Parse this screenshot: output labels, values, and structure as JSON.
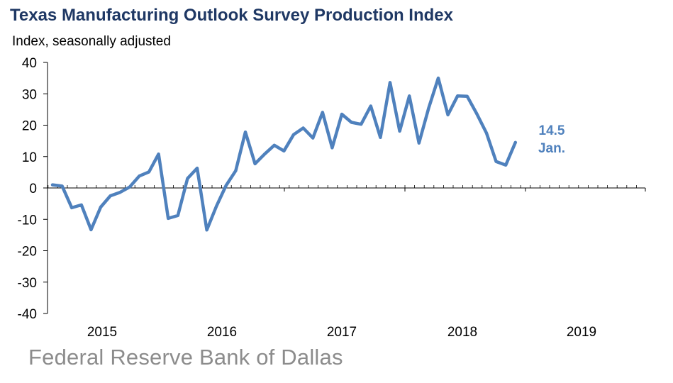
{
  "title": "Texas Manufacturing Outlook Survey Production Index",
  "subtitle": "Index, seasonally adjusted",
  "footer": "Federal Reserve Bank of Dallas",
  "colors": {
    "title": "#1f3864",
    "series": "#4f81bd",
    "axis": "#000000",
    "footer": "#8c8c8c"
  },
  "chart_data": {
    "type": "line",
    "title": "Texas Manufacturing Outlook Survey Production Index",
    "ylabel": "Index, seasonally adjusted",
    "xlabel": "",
    "ylim": [
      -40,
      40
    ],
    "y_ticks": [
      "40",
      "30",
      "20",
      "10",
      "0",
      "-10",
      "-20",
      "-30",
      "-40"
    ],
    "y_tick_values": [
      40,
      30,
      20,
      10,
      0,
      -10,
      -20,
      -30,
      -40
    ],
    "x_tick_labels": [
      "2015",
      "2016",
      "2017",
      "2018",
      "2019"
    ],
    "grid": false,
    "series": [
      {
        "values": [
          1.0,
          0.6,
          -6.3,
          -5.4,
          -13.3,
          -6.1,
          -2.5,
          -1.4,
          0.3,
          3.8,
          5.1,
          10.8,
          -9.7,
          -8.8,
          3.0,
          6.3,
          -13.4,
          -5.8,
          0.8,
          5.5,
          17.8,
          7.7,
          10.8,
          13.6,
          11.8,
          17.0,
          19.1,
          15.9,
          24.1,
          12.8,
          23.5,
          20.9,
          20.3,
          26.1,
          16.1,
          33.6,
          18.1,
          29.3,
          14.3,
          25.4,
          35.0,
          23.3,
          29.3,
          29.2,
          23.6,
          17.5,
          8.4,
          7.3,
          14.5
        ]
      }
    ],
    "annotations": [
      {
        "text": "14.5"
      },
      {
        "text": "Jan."
      }
    ]
  }
}
